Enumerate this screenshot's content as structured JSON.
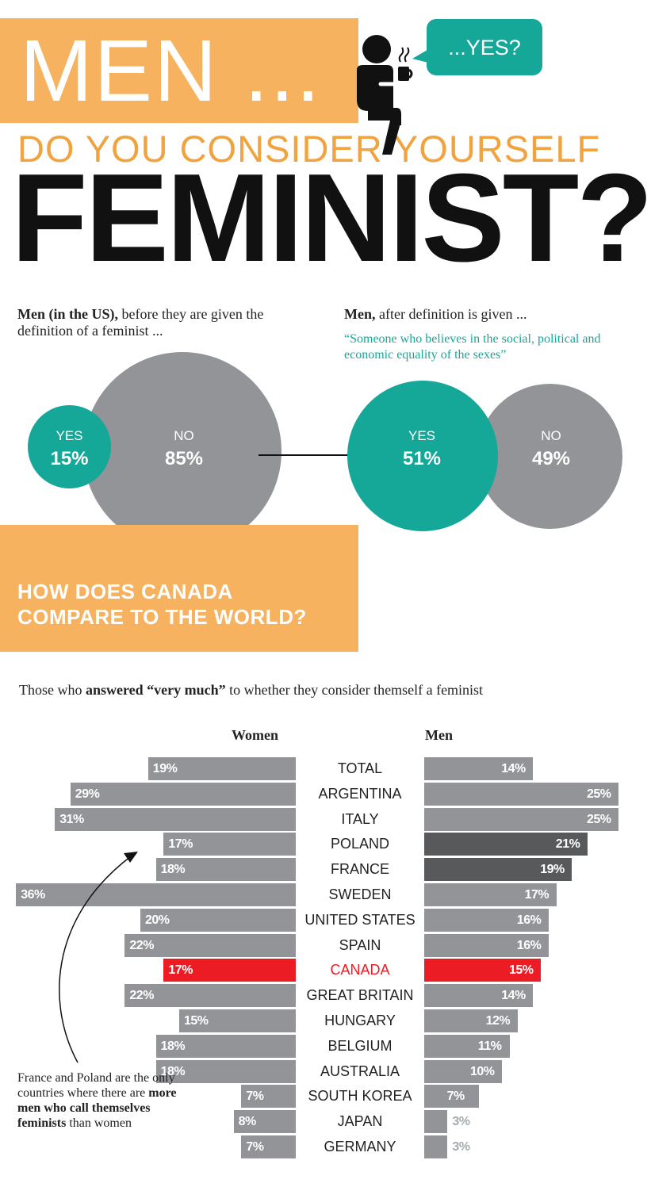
{
  "header": {
    "title_line1": "MEN ...",
    "title_line2": "DO YOU CONSIDER YOURSELF",
    "title_line3": "FEMINIST?",
    "speech": "...YES?"
  },
  "intro": {
    "left_bold": "Men (in the US),",
    "left_text": " before they are given the definition of a feminist ...",
    "right_bold": "Men,",
    "right_text": " after definition is given ...",
    "quote": "“Someone who believes in the social, political and economic equality of the sexes”"
  },
  "before": {
    "yes_label": "YES",
    "yes_value": "15%",
    "no_label": "NO",
    "no_value": "85%"
  },
  "after": {
    "yes_label": "YES",
    "yes_value": "51%",
    "no_label": "NO",
    "no_value": "49%"
  },
  "compare": {
    "line1": "HOW DOES CANADA",
    "line2": "COMPARE TO THE WORLD?"
  },
  "chart_caption": {
    "prefix": "Those who ",
    "bold": "answered “very much”",
    "suffix": " to whether they consider themself a feminist"
  },
  "note": {
    "text1": "France and Poland are the only countries where there are ",
    "bold": "more men who call themselves feminists",
    "text2": " than women"
  },
  "colors": {
    "orange": "#f6b25f",
    "teal": "#15a899",
    "gray": "#929497",
    "dark_gray": "#58595b",
    "red": "#ec1c24"
  },
  "chart_data": {
    "type": "bar",
    "title": "Those who answered “very much” to whether they consider themself a feminist",
    "unit": "%",
    "categories": [
      "TOTAL",
      "ARGENTINA",
      "ITALY",
      "POLAND",
      "FRANCE",
      "SWEDEN",
      "UNITED STATES",
      "SPAIN",
      "CANADA",
      "GREAT BRITAIN",
      "HUNGARY",
      "BELGIUM",
      "AUSTRALIA",
      "SOUTH KOREA",
      "JAPAN",
      "GERMANY"
    ],
    "series": [
      {
        "name": "Women",
        "values": [
          19,
          29,
          31,
          17,
          18,
          36,
          20,
          22,
          17,
          22,
          15,
          18,
          18,
          7,
          8,
          7
        ]
      },
      {
        "name": "Men",
        "values": [
          14,
          25,
          25,
          21,
          19,
          17,
          16,
          16,
          15,
          14,
          12,
          11,
          10,
          7,
          3,
          3
        ]
      }
    ],
    "highlight": {
      "CANADA": "#ec1c24",
      "men_dark": [
        "POLAND",
        "FRANCE"
      ]
    }
  }
}
